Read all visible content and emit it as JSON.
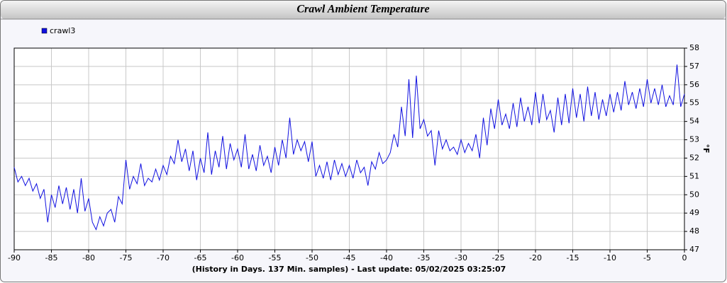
{
  "chart_data": {
    "type": "line",
    "title": "Crawl Ambient Temperature",
    "caption": "(History in Days. 137 Min. samples) - Last update: 05/02/2025 03:25:07",
    "y_label": "°F",
    "legend": "top-left",
    "grid": true,
    "xlim": [
      -90,
      0
    ],
    "ylim": [
      47,
      58
    ],
    "xticks": [
      -90,
      -85,
      -80,
      -75,
      -70,
      -65,
      -60,
      -55,
      -50,
      -45,
      -40,
      -35,
      -30,
      -25,
      -20,
      -15,
      -10,
      -5,
      0
    ],
    "yticks": [
      47,
      48,
      49,
      50,
      51,
      52,
      53,
      54,
      55,
      56,
      57,
      58
    ],
    "x": [
      -90,
      -89.5,
      -89,
      -88.5,
      -88,
      -87.5,
      -87,
      -86.5,
      -86,
      -85.5,
      -85,
      -84.5,
      -84,
      -83.5,
      -83,
      -82.5,
      -82,
      -81.5,
      -81,
      -80.5,
      -80,
      -79.5,
      -79,
      -78.5,
      -78,
      -77.5,
      -77,
      -76.5,
      -76,
      -75.5,
      -75,
      -74.5,
      -74,
      -73.5,
      -73,
      -72.5,
      -72,
      -71.5,
      -71,
      -70.5,
      -70,
      -69.5,
      -69,
      -68.5,
      -68,
      -67.5,
      -67,
      -66.5,
      -66,
      -65.5,
      -65,
      -64.5,
      -64,
      -63.5,
      -63,
      -62.5,
      -62,
      -61.5,
      -61,
      -60.5,
      -60,
      -59.5,
      -59,
      -58.5,
      -58,
      -57.5,
      -57,
      -56.5,
      -56,
      -55.5,
      -55,
      -54.5,
      -54,
      -53.5,
      -53,
      -52.5,
      -52,
      -51.5,
      -51,
      -50.5,
      -50,
      -49.5,
      -49,
      -48.5,
      -48,
      -47.5,
      -47,
      -46.5,
      -46,
      -45.5,
      -45,
      -44.5,
      -44,
      -43.5,
      -43,
      -42.5,
      -42,
      -41.5,
      -41,
      -40.5,
      -40,
      -39.5,
      -39,
      -38.5,
      -38,
      -37.5,
      -37,
      -36.5,
      -36,
      -35.5,
      -35,
      -34.5,
      -34,
      -33.5,
      -33,
      -32.5,
      -32,
      -31.5,
      -31,
      -30.5,
      -30,
      -29.5,
      -29,
      -28.5,
      -28,
      -27.5,
      -27,
      -26.5,
      -26,
      -25.5,
      -25,
      -24.5,
      -24,
      -23.5,
      -23,
      -22.5,
      -22,
      -21.5,
      -21,
      -20.5,
      -20,
      -19.5,
      -19,
      -18.5,
      -18,
      -17.5,
      -17,
      -16.5,
      -16,
      -15.5,
      -15,
      -14.5,
      -14,
      -13.5,
      -13,
      -12.5,
      -12,
      -11.5,
      -11,
      -10.5,
      -10,
      -9.5,
      -9,
      -8.5,
      -8,
      -7.5,
      -7,
      -6.5,
      -6,
      -5.5,
      -5,
      -4.5,
      -4,
      -3.5,
      -3,
      -2.5,
      -2,
      -1.5,
      -1,
      -0.5,
      0
    ],
    "series": [
      {
        "name": "crawl3",
        "color": "#1010e0",
        "values": [
          51.5,
          50.7,
          51.0,
          50.5,
          50.9,
          50.2,
          50.6,
          49.8,
          50.3,
          48.5,
          50.0,
          49.3,
          50.5,
          49.5,
          50.4,
          49.2,
          50.3,
          49.0,
          50.9,
          49.1,
          49.8,
          48.5,
          48.1,
          48.8,
          48.3,
          49.0,
          49.2,
          48.5,
          49.9,
          49.5,
          51.9,
          50.3,
          51.0,
          50.6,
          51.7,
          50.5,
          50.9,
          50.7,
          51.4,
          50.8,
          51.6,
          51.1,
          52.1,
          51.7,
          53.0,
          51.8,
          52.5,
          51.3,
          52.4,
          50.8,
          52.0,
          51.2,
          53.4,
          51.1,
          52.4,
          51.5,
          53.2,
          51.4,
          52.8,
          51.9,
          52.5,
          51.5,
          53.3,
          51.4,
          52.2,
          51.3,
          52.7,
          51.6,
          52.1,
          51.2,
          52.6,
          51.6,
          53.0,
          52.0,
          54.2,
          52.2,
          53.0,
          52.4,
          52.9,
          51.8,
          52.9,
          51.0,
          51.6,
          50.9,
          51.8,
          50.8,
          51.9,
          51.1,
          51.7,
          51.0,
          51.6,
          50.9,
          51.9,
          51.2,
          51.5,
          50.5,
          51.8,
          51.4,
          52.3,
          51.7,
          51.9,
          52.3,
          53.3,
          52.6,
          54.8,
          53.2,
          56.3,
          53.1,
          56.5,
          53.6,
          54.1,
          53.2,
          53.5,
          51.6,
          53.5,
          52.5,
          53.0,
          52.4,
          52.6,
          52.2,
          53.0,
          52.3,
          52.8,
          52.4,
          53.3,
          52.0,
          54.2,
          52.7,
          54.7,
          53.6,
          55.2,
          53.8,
          54.4,
          53.6,
          55.0,
          53.7,
          55.3,
          54.0,
          54.8,
          53.8,
          55.6,
          53.9,
          55.5,
          54.1,
          54.6,
          53.4,
          55.3,
          53.8,
          55.5,
          53.9,
          55.8,
          54.2,
          55.5,
          54.0,
          55.9,
          54.3,
          55.6,
          54.1,
          55.2,
          54.3,
          55.5,
          54.5,
          55.6,
          54.6,
          56.2,
          54.9,
          55.6,
          54.7,
          55.8,
          54.8,
          56.3,
          55.0,
          55.8,
          54.9,
          56.0,
          54.8,
          55.4,
          54.9,
          57.1,
          54.8,
          55.5
        ]
      }
    ]
  }
}
